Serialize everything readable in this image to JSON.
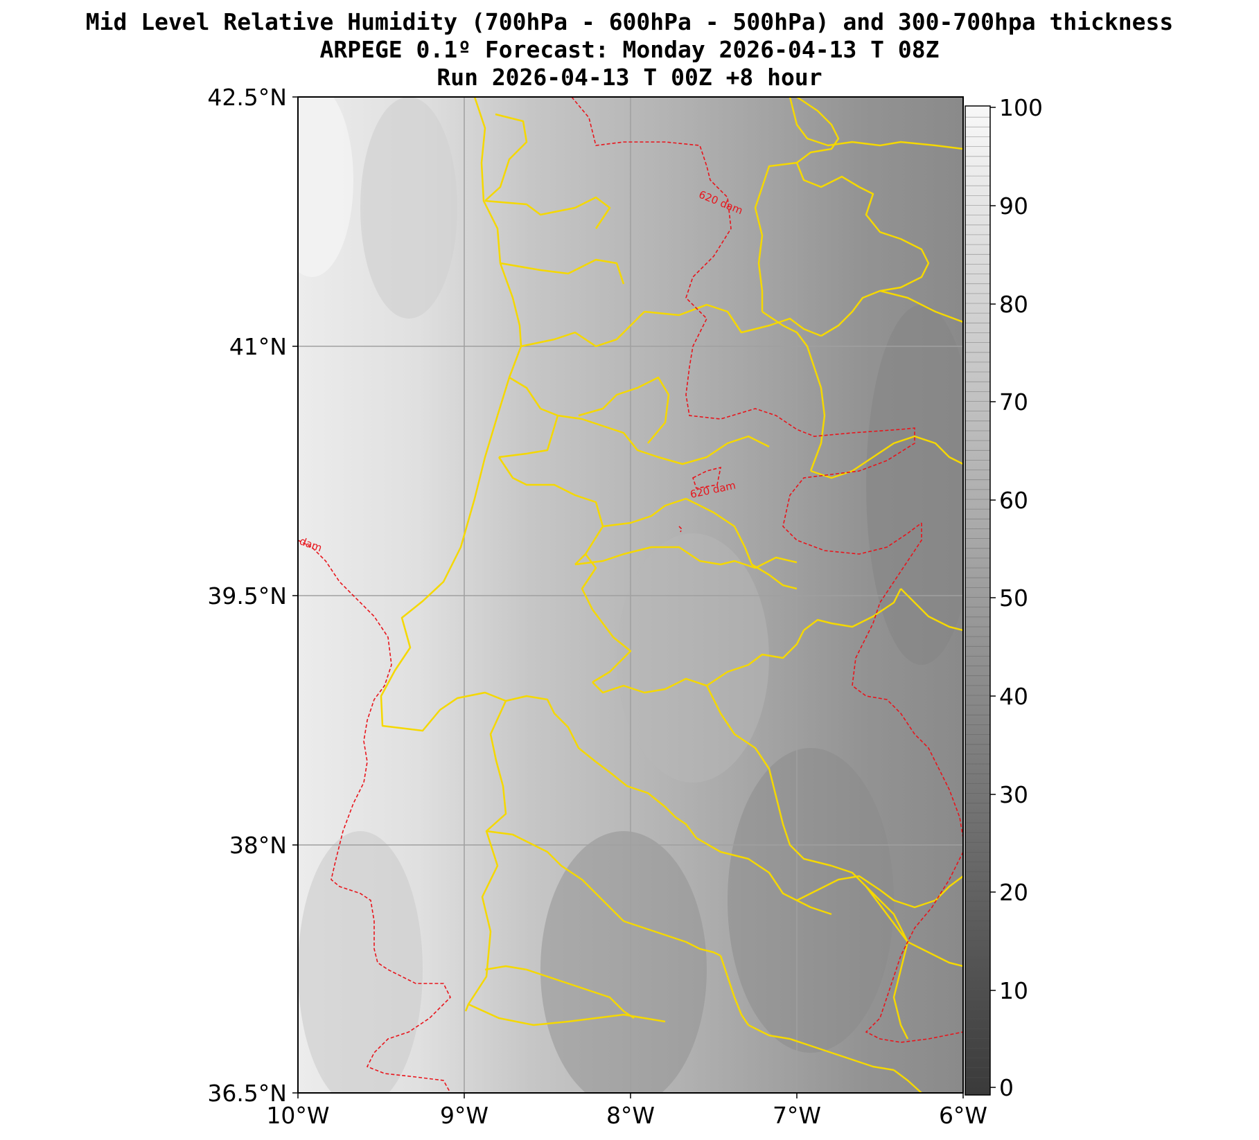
{
  "header": {
    "title_line1": "Mid Level Relative Humidity (700hPa - 600hPa - 500hPa) and 300-700hpa thickness",
    "title_line2": "ARPEGE 0.1º Forecast: Monday 2026-04-13 T 08Z",
    "title_line3": "Run 2026-04-13 T 00Z +8 hour"
  },
  "map": {
    "lat_labels": [
      "42.5°N",
      "41°N",
      "39.5°N",
      "38°N",
      "36.5°N"
    ],
    "lon_labels": [
      "10°W",
      "9°W",
      "8°W",
      "7°W",
      "6°W"
    ],
    "contour_labels": [
      "620 dam",
      "620 dam",
      "dam"
    ],
    "colors": {
      "boundaries": "#f5d800",
      "thickness_contour": "#e8141b",
      "gridlines": "#a0a0a0"
    }
  },
  "colorbar": {
    "ticks": [
      "100",
      "90",
      "80",
      "70",
      "60",
      "50",
      "40",
      "30",
      "20",
      "10",
      "0"
    ],
    "colormap": "greys (0 = dark, 100 = light)"
  }
}
